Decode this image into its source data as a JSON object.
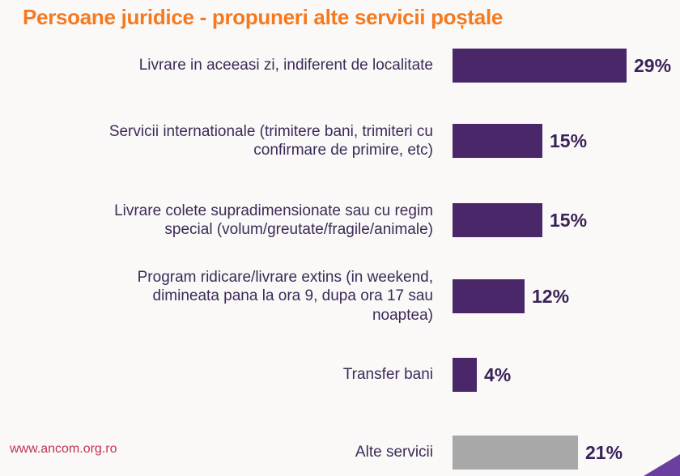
{
  "chart_data": {
    "type": "bar",
    "orientation": "horizontal",
    "title": "Persoane juridice - propuneri alte servicii poștale",
    "categories": [
      "Livrare in aceeasi zi, indiferent de localitate",
      "Servicii internationale (trimitere bani, trimiteri cu confirmare de primire, etc)",
      "Livrare colete supradimensionate sau cu regim special (volum/greutate/fragile/animale)",
      "Program ridicare/livrare extins (in weekend, dimineata pana la ora 9, dupa ora 17 sau noaptea)",
      "Transfer bani",
      "Alte servicii"
    ],
    "label_lines": [
      [
        "Livrare in aceeasi zi, indiferent de localitate"
      ],
      [
        "Servicii internationale (trimitere bani, trimiteri cu",
        "confirmare de primire, etc)"
      ],
      [
        "Livrare colete supradimensionate sau cu regim",
        "special (volum/greutate/fragile/animale)"
      ],
      [
        "Program ridicare/livrare extins (in weekend,",
        "dimineata pana la ora 9, dupa ora 17 sau",
        "noaptea)"
      ],
      [
        "Transfer bani"
      ],
      [
        "Alte servicii"
      ]
    ],
    "values": [
      29,
      15,
      15,
      12,
      4,
      21
    ],
    "value_labels": [
      "29%",
      "15%",
      "15%",
      "12%",
      "4%",
      "21%"
    ],
    "bar_colors": [
      "#4a2768",
      "#4a2768",
      "#4a2768",
      "#4a2768",
      "#4a2768",
      "#a8a8a8"
    ],
    "xlim": [
      0,
      31
    ],
    "grid": false,
    "legend": "none",
    "value_label_position": "right-of-bar"
  },
  "footer": {
    "website": "www.ancom.org.ro"
  },
  "colors": {
    "background": "#faf9f8",
    "title_text": "#f5791f",
    "bar_purple": "#4a2768",
    "bar_gray": "#a8a8a8",
    "category_label_text": "#3e2a57",
    "value_label_text": "#3a2258",
    "footer_text": "#c23352",
    "corner_triangle": "#6b3fa0"
  }
}
